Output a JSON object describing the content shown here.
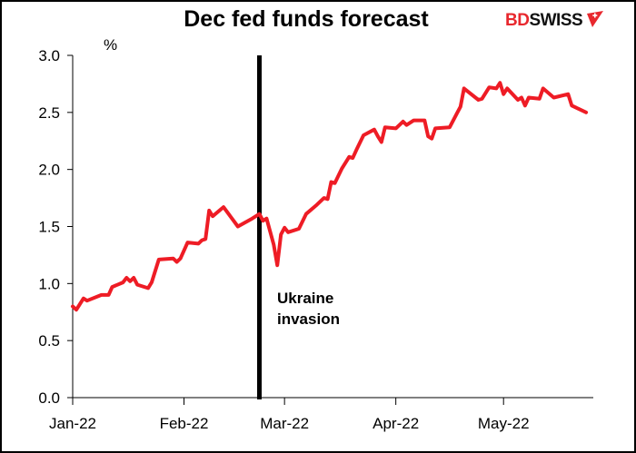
{
  "chart_data": {
    "type": "line",
    "title": "Dec fed funds forecast",
    "ylabel": "%",
    "xlabel": "",
    "ylim": [
      0,
      3.0
    ],
    "yticks": [
      0.0,
      0.5,
      1.0,
      1.5,
      2.0,
      2.5,
      3.0
    ],
    "ytick_labels": [
      "0.0",
      "0.5",
      "1.0",
      "1.5",
      "2.0",
      "2.5",
      "3.0"
    ],
    "xlim": [
      "2022-01-01",
      "2022-05-26"
    ],
    "xticks": [
      "2022-01-01",
      "2022-02-01",
      "2022-03-01",
      "2022-04-01",
      "2022-05-01"
    ],
    "xtick_labels": [
      "Jan-22",
      "Feb-22",
      "Mar-22",
      "Apr-22",
      "May-22"
    ],
    "grid": false,
    "series_color": "#ee1c25",
    "annotation": {
      "date": "2022-02-22",
      "line1": "Ukraine",
      "line2": "invasion"
    },
    "series": [
      {
        "points": [
          [
            "2022-01-01",
            0.8
          ],
          [
            "2022-01-02",
            0.77
          ],
          [
            "2022-01-04",
            0.87
          ],
          [
            "2022-01-05",
            0.85
          ],
          [
            "2022-01-09",
            0.9
          ],
          [
            "2022-01-11",
            0.9
          ],
          [
            "2022-01-12",
            0.97
          ],
          [
            "2022-01-15",
            1.01
          ],
          [
            "2022-01-16",
            1.05
          ],
          [
            "2022-01-17",
            1.02
          ],
          [
            "2022-01-18",
            1.05
          ],
          [
            "2022-01-19",
            0.99
          ],
          [
            "2022-01-22",
            0.96
          ],
          [
            "2022-01-23",
            1.01
          ],
          [
            "2022-01-25",
            1.21
          ],
          [
            "2022-01-29",
            1.22
          ],
          [
            "2022-01-30",
            1.19
          ],
          [
            "2022-01-31",
            1.22
          ],
          [
            "2022-02-02",
            1.36
          ],
          [
            "2022-02-05",
            1.35
          ],
          [
            "2022-02-06",
            1.38
          ],
          [
            "2022-02-07",
            1.39
          ],
          [
            "2022-02-08",
            1.64
          ],
          [
            "2022-02-09",
            1.59
          ],
          [
            "2022-02-12",
            1.67
          ],
          [
            "2022-02-16",
            1.5
          ],
          [
            "2022-02-20",
            1.57
          ],
          [
            "2022-02-22",
            1.61
          ],
          [
            "2022-02-23",
            1.55
          ],
          [
            "2022-02-24",
            1.57
          ],
          [
            "2022-02-26",
            1.34
          ],
          [
            "2022-02-27",
            1.16
          ],
          [
            "2022-02-28",
            1.43
          ],
          [
            "2022-03-01",
            1.49
          ],
          [
            "2022-03-02",
            1.45
          ],
          [
            "2022-03-05",
            1.48
          ],
          [
            "2022-03-07",
            1.61
          ],
          [
            "2022-03-10",
            1.69
          ],
          [
            "2022-03-12",
            1.75
          ],
          [
            "2022-03-13",
            1.74
          ],
          [
            "2022-03-14",
            1.89
          ],
          [
            "2022-03-15",
            1.88
          ],
          [
            "2022-03-17",
            2.01
          ],
          [
            "2022-03-19",
            2.11
          ],
          [
            "2022-03-20",
            2.1
          ],
          [
            "2022-03-21",
            2.17
          ],
          [
            "2022-03-23",
            2.3
          ],
          [
            "2022-03-26",
            2.35
          ],
          [
            "2022-03-27",
            2.29
          ],
          [
            "2022-03-28",
            2.24
          ],
          [
            "2022-03-29",
            2.37
          ],
          [
            "2022-04-01",
            2.36
          ],
          [
            "2022-04-03",
            2.42
          ],
          [
            "2022-04-04",
            2.39
          ],
          [
            "2022-04-06",
            2.43
          ],
          [
            "2022-04-09",
            2.43
          ],
          [
            "2022-04-10",
            2.29
          ],
          [
            "2022-04-11",
            2.27
          ],
          [
            "2022-04-12",
            2.36
          ],
          [
            "2022-04-16",
            2.37
          ],
          [
            "2022-04-18",
            2.49
          ],
          [
            "2022-04-19",
            2.55
          ],
          [
            "2022-04-20",
            2.71
          ],
          [
            "2022-04-24",
            2.61
          ],
          [
            "2022-04-25",
            2.62
          ],
          [
            "2022-04-27",
            2.72
          ],
          [
            "2022-04-29",
            2.71
          ],
          [
            "2022-04-30",
            2.76
          ],
          [
            "2022-05-01",
            2.66
          ],
          [
            "2022-05-02",
            2.71
          ],
          [
            "2022-05-05",
            2.61
          ],
          [
            "2022-05-06",
            2.63
          ],
          [
            "2022-05-07",
            2.56
          ],
          [
            "2022-05-08",
            2.63
          ],
          [
            "2022-05-11",
            2.62
          ],
          [
            "2022-05-12",
            2.71
          ],
          [
            "2022-05-15",
            2.63
          ],
          [
            "2022-05-19",
            2.66
          ],
          [
            "2022-05-20",
            2.56
          ],
          [
            "2022-05-22",
            2.53
          ],
          [
            "2022-05-24",
            2.5
          ]
        ]
      }
    ]
  },
  "logo": {
    "part1": "BD",
    "part2": "SWISS"
  }
}
